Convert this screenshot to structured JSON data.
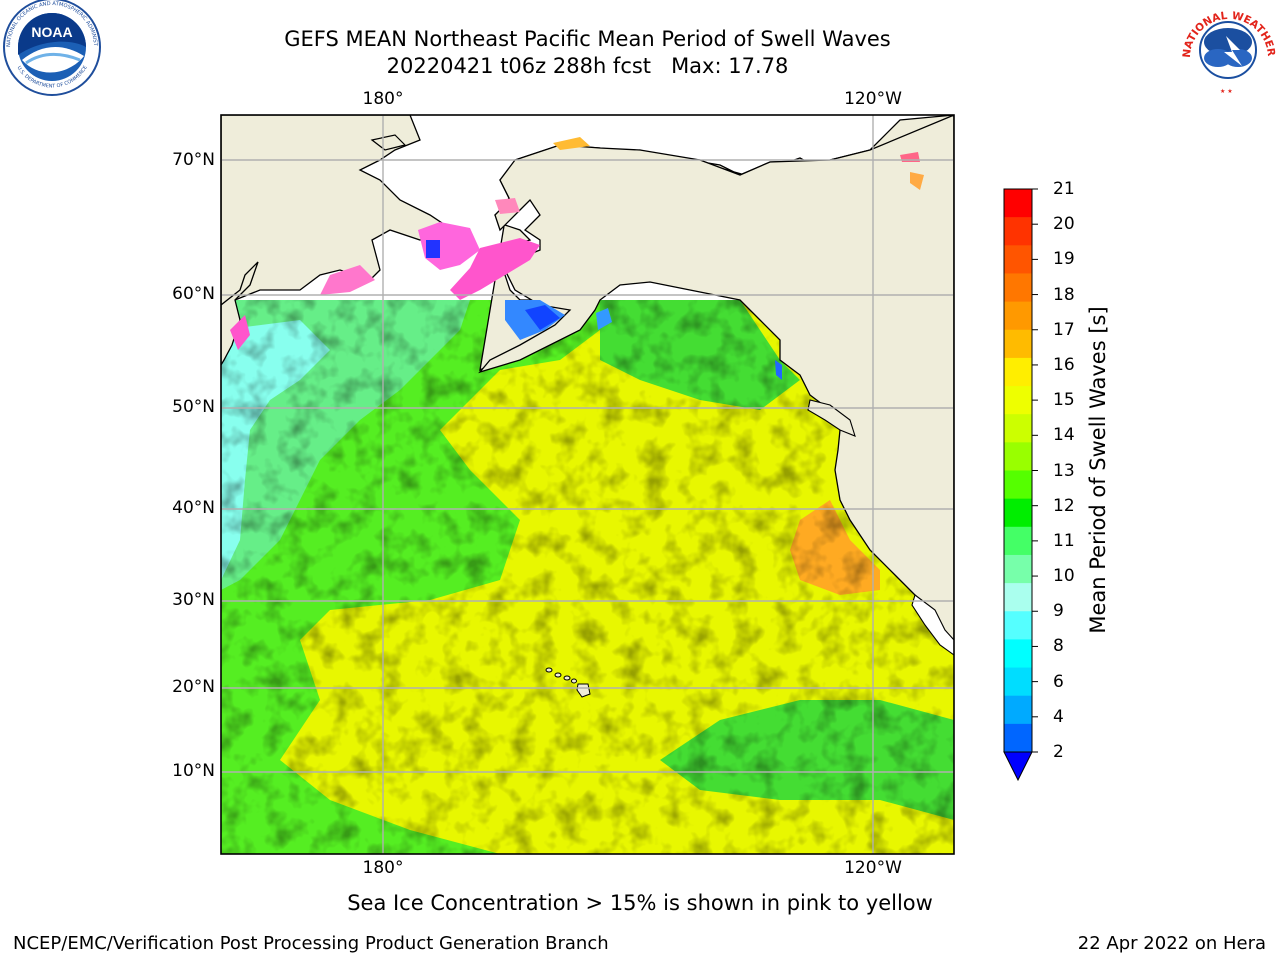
{
  "header": {
    "title_line1": "GEFS MEAN Northeast Pacific Mean Period of Swell Waves",
    "title_line2": "20220421 t06z 288h fcst   Max: 17.78"
  },
  "logos": {
    "left": {
      "name": "NOAA",
      "ring_text": "NATIONAL OCEANIC AND ATMOSPHERIC ADMINISTRATION",
      "bottom_text": "U.S. DEPARTMENT OF COMMERCE"
    },
    "right": {
      "ring_text": "NATIONAL WEATHER SERVICE"
    }
  },
  "map": {
    "lon_labels_top": [
      "180°",
      "120°W"
    ],
    "lon_labels_bottom": [
      "180°",
      "120°W"
    ],
    "lat_labels": [
      "70°N",
      "60°N",
      "50°N",
      "40°N",
      "30°N",
      "20°N",
      "10°N"
    ],
    "gridlines": true,
    "land_color": "#efedda",
    "ocean_missing_color": "#ffffff",
    "coast_color": "#000000"
  },
  "colorbar": {
    "label": "Mean Period of Swell Waves [s]",
    "ticks": [
      "21",
      "20",
      "19",
      "18",
      "17",
      "16",
      "15",
      "14",
      "13",
      "12",
      "11",
      "10",
      "9",
      "8",
      "6",
      "4",
      "2"
    ],
    "colors_top_to_bottom": [
      "#ff0000",
      "#ff3300",
      "#ff5500",
      "#ff7700",
      "#ff9900",
      "#ffbb00",
      "#ffee00",
      "#eeff00",
      "#ccff00",
      "#99ff00",
      "#55ff00",
      "#00ee00",
      "#44ff66",
      "#77ffaa",
      "#aaffee",
      "#55ffff",
      "#00ffff",
      "#00ddff",
      "#00aaff",
      "#0066ff"
    ],
    "extend_color": "#0000ff"
  },
  "footer": {
    "note": "Sea Ice Concentration > 15% is shown in pink to yellow",
    "credit": "NCEP/EMC/Verification Post Processing Product Generation Branch",
    "run_info": "22 Apr 2022 on Hera"
  }
}
